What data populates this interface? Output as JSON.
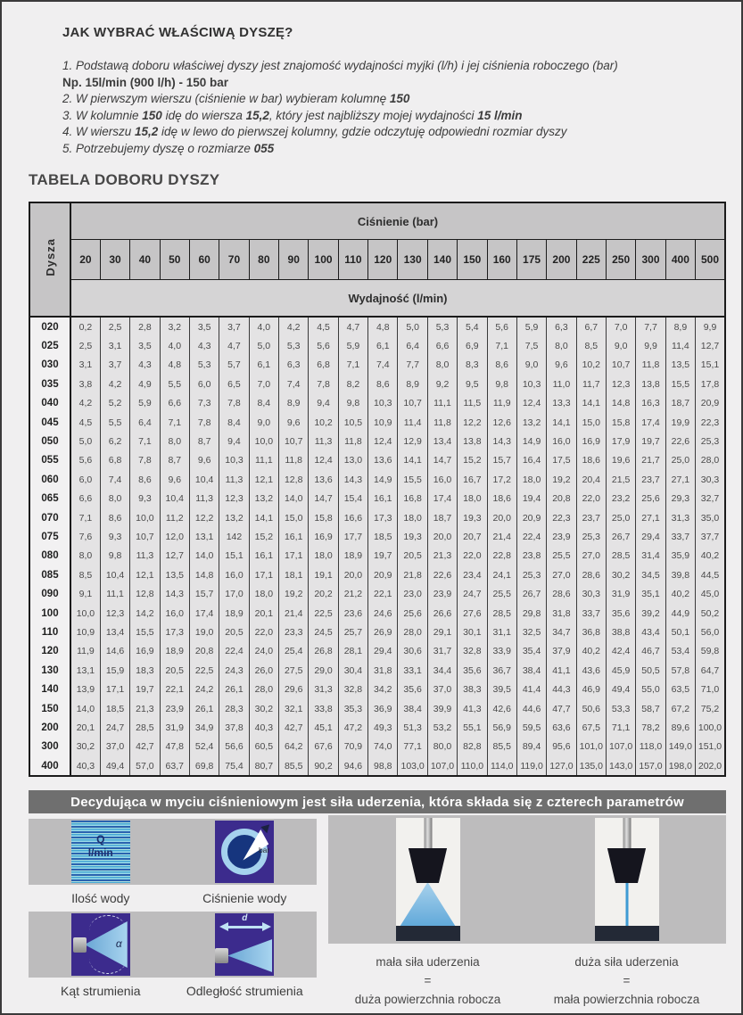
{
  "intro": {
    "title": "JAK WYBRAĆ WŁAŚCIWĄ DYSZĘ?",
    "lines": [
      {
        "segments": [
          {
            "t": "1. Podstawą doboru właściwej dyszy jest znajomość wydajności myjki (l/h) i jej ciśnienia roboczego (bar)",
            "b": false,
            "i": true
          }
        ]
      },
      {
        "segments": [
          {
            "t": "Np. 15l/min (900 l/h) - 150 bar",
            "b": true,
            "i": false
          }
        ]
      },
      {
        "segments": [
          {
            "t": "2. W pierwszym wierszu (ciśnienie w bar) wybieram kolumnę ",
            "b": false,
            "i": true
          },
          {
            "t": "150",
            "b": true,
            "i": true
          }
        ]
      },
      {
        "segments": [
          {
            "t": "3. W kolumnie ",
            "b": false,
            "i": true
          },
          {
            "t": "150",
            "b": true,
            "i": true
          },
          {
            "t": " idę do wiersza ",
            "b": false,
            "i": true
          },
          {
            "t": "15,2",
            "b": true,
            "i": true
          },
          {
            "t": ", który jest najbliższy mojej wydajności ",
            "b": false,
            "i": true
          },
          {
            "t": "15 l/min",
            "b": true,
            "i": true
          }
        ]
      },
      {
        "segments": [
          {
            "t": "4. W wierszu ",
            "b": false,
            "i": true
          },
          {
            "t": "15,2",
            "b": true,
            "i": true
          },
          {
            "t": " idę w lewo do pierwszej kolumny, gdzie odczytuję odpowiedni rozmiar dyszy",
            "b": false,
            "i": true
          }
        ]
      },
      {
        "segments": [
          {
            "t": "5. Potrzebujemy dyszę o rozmiarze ",
            "b": false,
            "i": true
          },
          {
            "t": "055",
            "b": true,
            "i": true
          }
        ]
      }
    ]
  },
  "table": {
    "title": "TABELA DOBORU DYSZY",
    "corner_label": "Dysza",
    "pressure_label": "Ciśnienie (bar)",
    "flow_label": "Wydajność (l/min)",
    "pressures": [
      "20",
      "30",
      "40",
      "50",
      "60",
      "70",
      "80",
      "90",
      "100",
      "110",
      "120",
      "130",
      "140",
      "150",
      "160",
      "175",
      "200",
      "225",
      "250",
      "300",
      "400",
      "500"
    ],
    "rows": [
      {
        "nozzle": "020",
        "values": [
          "0,2",
          "2,5",
          "2,8",
          "3,2",
          "3,5",
          "3,7",
          "4,0",
          "4,2",
          "4,5",
          "4,7",
          "4,8",
          "5,0",
          "5,3",
          "5,4",
          "5,6",
          "5,9",
          "6,3",
          "6,7",
          "7,0",
          "7,7",
          "8,9",
          "9,9"
        ]
      },
      {
        "nozzle": "025",
        "values": [
          "2,5",
          "3,1",
          "3,5",
          "4,0",
          "4,3",
          "4,7",
          "5,0",
          "5,3",
          "5,6",
          "5,9",
          "6,1",
          "6,4",
          "6,6",
          "6,9",
          "7,1",
          "7,5",
          "8,0",
          "8,5",
          "9,0",
          "9,9",
          "11,4",
          "12,7"
        ]
      },
      {
        "nozzle": "030",
        "values": [
          "3,1",
          "3,7",
          "4,3",
          "4,8",
          "5,3",
          "5,7",
          "6,1",
          "6,3",
          "6,8",
          "7,1",
          "7,4",
          "7,7",
          "8,0",
          "8,3",
          "8,6",
          "9,0",
          "9,6",
          "10,2",
          "10,7",
          "11,8",
          "13,5",
          "15,1"
        ]
      },
      {
        "nozzle": "035",
        "values": [
          "3,8",
          "4,2",
          "4,9",
          "5,5",
          "6,0",
          "6,5",
          "7,0",
          "7,4",
          "7,8",
          "8,2",
          "8,6",
          "8,9",
          "9,2",
          "9,5",
          "9,8",
          "10,3",
          "11,0",
          "11,7",
          "12,3",
          "13,8",
          "15,5",
          "17,8"
        ]
      },
      {
        "nozzle": "040",
        "values": [
          "4,2",
          "5,2",
          "5,9",
          "6,6",
          "7,3",
          "7,8",
          "8,4",
          "8,9",
          "9,4",
          "9,8",
          "10,3",
          "10,7",
          "11,1",
          "11,5",
          "11,9",
          "12,4",
          "13,3",
          "14,1",
          "14,8",
          "16,3",
          "18,7",
          "20,9"
        ]
      },
      {
        "nozzle": "045",
        "values": [
          "4,5",
          "5,5",
          "6,4",
          "7,1",
          "7,8",
          "8,4",
          "9,0",
          "9,6",
          "10,2",
          "10,5",
          "10,9",
          "11,4",
          "11,8",
          "12,2",
          "12,6",
          "13,2",
          "14,1",
          "15,0",
          "15,8",
          "17,4",
          "19,9",
          "22,3"
        ]
      },
      {
        "nozzle": "050",
        "values": [
          "5,0",
          "6,2",
          "7,1",
          "8,0",
          "8,7",
          "9,4",
          "10,0",
          "10,7",
          "11,3",
          "11,8",
          "12,4",
          "12,9",
          "13,4",
          "13,8",
          "14,3",
          "14,9",
          "16,0",
          "16,9",
          "17,9",
          "19,7",
          "22,6",
          "25,3"
        ]
      },
      {
        "nozzle": "055",
        "values": [
          "5,6",
          "6,8",
          "7,8",
          "8,7",
          "9,6",
          "10,3",
          "11,1",
          "11,8",
          "12,4",
          "13,0",
          "13,6",
          "14,1",
          "14,7",
          "15,2",
          "15,7",
          "16,4",
          "17,5",
          "18,6",
          "19,6",
          "21,7",
          "25,0",
          "28,0"
        ]
      },
      {
        "nozzle": "060",
        "values": [
          "6,0",
          "7,4",
          "8,6",
          "9,6",
          "10,4",
          "11,3",
          "12,1",
          "12,8",
          "13,6",
          "14,3",
          "14,9",
          "15,5",
          "16,0",
          "16,7",
          "17,2",
          "18,0",
          "19,2",
          "20,4",
          "21,5",
          "23,7",
          "27,1",
          "30,3"
        ]
      },
      {
        "nozzle": "065",
        "values": [
          "6,6",
          "8,0",
          "9,3",
          "10,4",
          "11,3",
          "12,3",
          "13,2",
          "14,0",
          "14,7",
          "15,4",
          "16,1",
          "16,8",
          "17,4",
          "18,0",
          "18,6",
          "19,4",
          "20,8",
          "22,0",
          "23,2",
          "25,6",
          "29,3",
          "32,7"
        ]
      },
      {
        "nozzle": "070",
        "values": [
          "7,1",
          "8,6",
          "10,0",
          "11,2",
          "12,2",
          "13,2",
          "14,1",
          "15,0",
          "15,8",
          "16,6",
          "17,3",
          "18,0",
          "18,7",
          "19,3",
          "20,0",
          "20,9",
          "22,3",
          "23,7",
          "25,0",
          "27,1",
          "31,3",
          "35,0"
        ]
      },
      {
        "nozzle": "075",
        "values": [
          "7,6",
          "9,3",
          "10,7",
          "12,0",
          "13,1",
          "142",
          "15,2",
          "16,1",
          "16,9",
          "17,7",
          "18,5",
          "19,3",
          "20,0",
          "20,7",
          "21,4",
          "22,4",
          "23,9",
          "25,3",
          "26,7",
          "29,4",
          "33,7",
          "37,7"
        ]
      },
      {
        "nozzle": "080",
        "values": [
          "8,0",
          "9,8",
          "11,3",
          "12,7",
          "14,0",
          "15,1",
          "16,1",
          "17,1",
          "18,0",
          "18,9",
          "19,7",
          "20,5",
          "21,3",
          "22,0",
          "22,8",
          "23,8",
          "25,5",
          "27,0",
          "28,5",
          "31,4",
          "35,9",
          "40,2"
        ]
      },
      {
        "nozzle": "085",
        "values": [
          "8,5",
          "10,4",
          "12,1",
          "13,5",
          "14,8",
          "16,0",
          "17,1",
          "18,1",
          "19,1",
          "20,0",
          "20,9",
          "21,8",
          "22,6",
          "23,4",
          "24,1",
          "25,3",
          "27,0",
          "28,6",
          "30,2",
          "34,5",
          "39,8",
          "44,5"
        ]
      },
      {
        "nozzle": "090",
        "values": [
          "9,1",
          "11,1",
          "12,8",
          "14,3",
          "15,7",
          "17,0",
          "18,0",
          "19,2",
          "20,2",
          "21,2",
          "22,1",
          "23,0",
          "23,9",
          "24,7",
          "25,5",
          "26,7",
          "28,6",
          "30,3",
          "31,9",
          "35,1",
          "40,2",
          "45,0"
        ]
      },
      {
        "nozzle": "100",
        "values": [
          "10,0",
          "12,3",
          "14,2",
          "16,0",
          "17,4",
          "18,9",
          "20,1",
          "21,4",
          "22,5",
          "23,6",
          "24,6",
          "25,6",
          "26,6",
          "27,6",
          "28,5",
          "29,8",
          "31,8",
          "33,7",
          "35,6",
          "39,2",
          "44,9",
          "50,2"
        ]
      },
      {
        "nozzle": "110",
        "values": [
          "10,9",
          "13,4",
          "15,5",
          "17,3",
          "19,0",
          "20,5",
          "22,0",
          "23,3",
          "24,5",
          "25,7",
          "26,9",
          "28,0",
          "29,1",
          "30,1",
          "31,1",
          "32,5",
          "34,7",
          "36,8",
          "38,8",
          "43,4",
          "50,1",
          "56,0"
        ]
      },
      {
        "nozzle": "120",
        "values": [
          "11,9",
          "14,6",
          "16,9",
          "18,9",
          "20,8",
          "22,4",
          "24,0",
          "25,4",
          "26,8",
          "28,1",
          "29,4",
          "30,6",
          "31,7",
          "32,8",
          "33,9",
          "35,4",
          "37,9",
          "40,2",
          "42,4",
          "46,7",
          "53,4",
          "59,8"
        ]
      },
      {
        "nozzle": "130",
        "values": [
          "13,1",
          "15,9",
          "18,3",
          "20,5",
          "22,5",
          "24,3",
          "26,0",
          "27,5",
          "29,0",
          "30,4",
          "31,8",
          "33,1",
          "34,4",
          "35,6",
          "36,7",
          "38,4",
          "41,1",
          "43,6",
          "45,9",
          "50,5",
          "57,8",
          "64,7"
        ]
      },
      {
        "nozzle": "140",
        "values": [
          "13,9",
          "17,1",
          "19,7",
          "22,1",
          "24,2",
          "26,1",
          "28,0",
          "29,6",
          "31,3",
          "32,8",
          "34,2",
          "35,6",
          "37,0",
          "38,3",
          "39,5",
          "41,4",
          "44,3",
          "46,9",
          "49,4",
          "55,0",
          "63,5",
          "71,0"
        ]
      },
      {
        "nozzle": "150",
        "values": [
          "14,0",
          "18,5",
          "21,3",
          "23,9",
          "26,1",
          "28,3",
          "30,2",
          "32,1",
          "33,8",
          "35,3",
          "36,9",
          "38,4",
          "39,9",
          "41,3",
          "42,6",
          "44,6",
          "47,7",
          "50,6",
          "53,3",
          "58,7",
          "67,2",
          "75,2"
        ]
      },
      {
        "nozzle": "200",
        "values": [
          "20,1",
          "24,7",
          "28,5",
          "31,9",
          "34,9",
          "37,8",
          "40,3",
          "42,7",
          "45,1",
          "47,2",
          "49,3",
          "51,3",
          "53,2",
          "55,1",
          "56,9",
          "59,5",
          "63,6",
          "67,5",
          "71,1",
          "78,2",
          "89,6",
          "100,0"
        ]
      },
      {
        "nozzle": "300",
        "values": [
          "30,2",
          "37,0",
          "42,7",
          "47,8",
          "52,4",
          "56,6",
          "60,5",
          "64,2",
          "67,6",
          "70,9",
          "74,0",
          "77,1",
          "80,0",
          "82,8",
          "85,5",
          "89,4",
          "95,6",
          "101,0",
          "107,0",
          "118,0",
          "149,0",
          "151,0"
        ]
      },
      {
        "nozzle": "400",
        "values": [
          "40,3",
          "49,4",
          "57,0",
          "63,7",
          "69,8",
          "75,4",
          "80,7",
          "85,5",
          "90,2",
          "94,6",
          "98,8",
          "103,0",
          "107,0",
          "110,0",
          "114,0",
          "119,0",
          "127,0",
          "135,0",
          "143,0",
          "157,0",
          "198,0",
          "202,0"
        ]
      }
    ]
  },
  "bottom": {
    "banner": "Decydująca w myciu ciśnieniowym jest siła uderzenia, która składa się z czterech parametrów",
    "params": [
      {
        "caption": "Ilość wody",
        "icon": "water-quantity-icon",
        "icon_text_top": "Q",
        "icon_text_bottom": "l/min"
      },
      {
        "caption": "Ciśnienie wody",
        "icon": "pressure-gauge-icon",
        "icon_text": "bar"
      },
      {
        "caption": "Kąt strumienia",
        "icon": "spray-angle-icon",
        "icon_text": "α"
      },
      {
        "caption": "Odległość strumienia",
        "icon": "spray-distance-icon",
        "icon_text": "d"
      }
    ],
    "comparisons": [
      {
        "line1": "mała siła uderzenia",
        "equals": "=",
        "line2": "duża powierzchnia robocza"
      },
      {
        "line1": "duża siła uderzenia",
        "equals": "=",
        "line2": "mała powierzchnia robocza"
      }
    ]
  },
  "colors": {
    "banner_gray": "#6f6f6f",
    "panel_gray": "#bdbcbd",
    "header_gray": "#c6c5c6",
    "icon_purple": "#3c2b8d",
    "spray_blue": "#5ea7d9",
    "page_bg": "#f0eff0"
  }
}
